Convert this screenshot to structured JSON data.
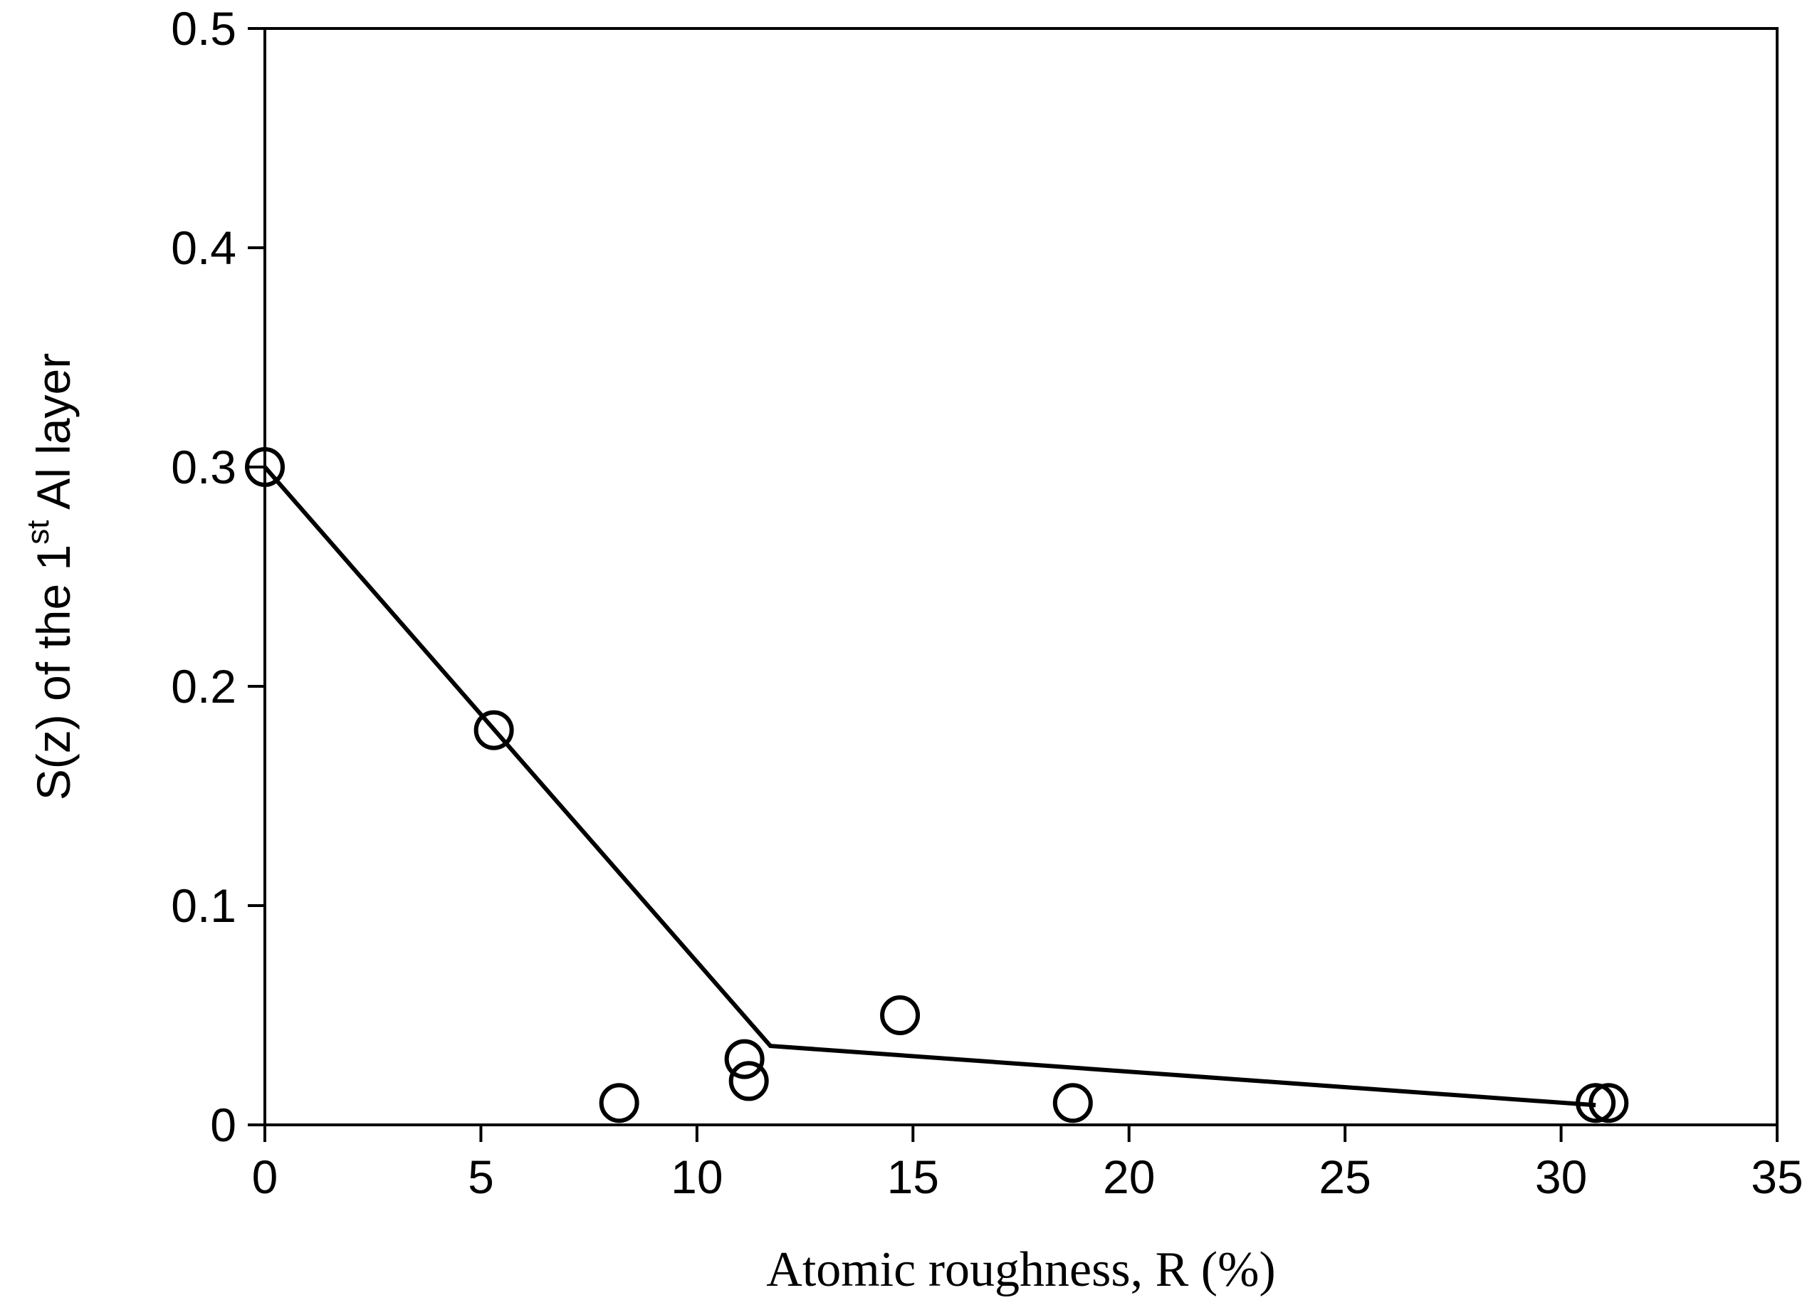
{
  "chart_data": {
    "type": "scatter",
    "xlabel": "Atomic roughness, R (%)",
    "ylabel": {
      "before": "S(z) of the 1",
      "superscript": "st",
      "after": " Al layer"
    },
    "xlim": [
      0,
      35
    ],
    "ylim": [
      0,
      0.5
    ],
    "x_ticks": [
      0,
      5,
      10,
      15,
      20,
      25,
      30,
      35
    ],
    "x_tick_labels": [
      "0",
      "5",
      "10",
      "15",
      "20",
      "25",
      "30",
      "35"
    ],
    "y_ticks": [
      0,
      0.1,
      0.2,
      0.3,
      0.4,
      0.5
    ],
    "y_tick_labels": [
      "0",
      "0.1",
      "0.2",
      "0.3",
      "0.4",
      "0.5"
    ],
    "grid": false,
    "legend": "none",
    "marker": "open-circle",
    "color": "#000000",
    "points": [
      {
        "x": 0,
        "y": 0.3
      },
      {
        "x": 5.3,
        "y": 0.18
      },
      {
        "x": 8.2,
        "y": 0.01
      },
      {
        "x": 11.1,
        "y": 0.03
      },
      {
        "x": 11.2,
        "y": 0.02
      },
      {
        "x": 14.7,
        "y": 0.05
      },
      {
        "x": 18.7,
        "y": 0.01
      },
      {
        "x": 30.8,
        "y": 0.01
      },
      {
        "x": 31.1,
        "y": 0.01
      }
    ],
    "fit_line": [
      {
        "x": 0,
        "y": 0.3
      },
      {
        "x": 11.7,
        "y": 0.036
      },
      {
        "x": 30.8,
        "y": 0.009
      }
    ]
  }
}
